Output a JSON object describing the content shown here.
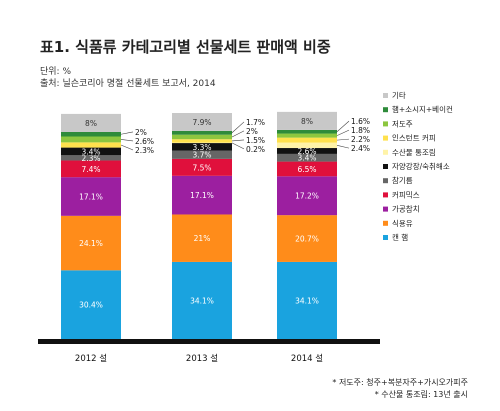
{
  "title": "표1. 식품류 카테고리별 선물세트 판매액 비중",
  "unit_line": "단위: %",
  "source_line": "출처: 닐슨코리아 명절 선물세트 보고서, 2014",
  "footnotes": [
    "* 저도주: 청주+복분자주+가시오가피주",
    "* 수산물 통조림: 13년 출시"
  ],
  "colors": {
    "기타": "#c8c8c8",
    "햄+소시지+베이컨": "#2e8b3a",
    "저도주": "#8cc63f",
    "인스턴트 커피": "#ffe14d",
    "수산물 통조림": "#fff3a8",
    "자양강장/숙취해소": "#111111",
    "참기름": "#666666",
    "커피믹스": "#e0103c",
    "가공참치": "#9c1fa0",
    "식용유": "#ff8c1a",
    "캔 햄": "#1aa3df"
  },
  "chart_data": {
    "type": "bar",
    "stacked": true,
    "categories": [
      "2012 설",
      "2013 설",
      "2014 설"
    ],
    "ylim": [
      0,
      100
    ],
    "series": [
      {
        "name": "캔 햄",
        "values": [
          30.4,
          34.1,
          34.1
        ],
        "labels": [
          "30.4%",
          "34.1%",
          "34.1%"
        ]
      },
      {
        "name": "식용유",
        "values": [
          24.1,
          21,
          20.7
        ],
        "labels": [
          "24.1%",
          "21%",
          "20.7%"
        ]
      },
      {
        "name": "가공참치",
        "values": [
          17.1,
          17.1,
          17.2
        ],
        "labels": [
          "17.1%",
          "17.1%",
          "17.2%"
        ]
      },
      {
        "name": "커피믹스",
        "values": [
          7.4,
          7.5,
          6.5
        ],
        "labels": [
          "7.4%",
          "7.5%",
          "6.5%"
        ]
      },
      {
        "name": "참기름",
        "values": [
          2.3,
          3.7,
          3.4
        ],
        "labels": [
          "2.3%",
          "3.7%",
          "3.4%"
        ]
      },
      {
        "name": "자양강장/숙취해소",
        "values": [
          3.4,
          3.3,
          2.6
        ],
        "labels": [
          "3.4%",
          "3.3%",
          "2.6%"
        ]
      },
      {
        "name": "수산물 통조림",
        "values": [
          0,
          0.2,
          2.4
        ],
        "labels": [
          "",
          "0.2%",
          "2.4%"
        ]
      },
      {
        "name": "인스턴트 커피",
        "values": [
          2.3,
          1.5,
          2.2
        ],
        "labels": [
          "2.3%",
          "1.5%",
          "2.2%"
        ]
      },
      {
        "name": "저도주",
        "values": [
          2.6,
          2,
          1.8
        ],
        "labels": [
          "2.6%",
          "2%",
          "1.8%"
        ]
      },
      {
        "name": "햄+소시지+베이컨",
        "values": [
          2,
          1.7,
          1.6
        ],
        "labels": [
          "2%",
          "1.7%",
          "1.6%"
        ]
      },
      {
        "name": "기타",
        "values": [
          8,
          7.9,
          8
        ],
        "labels": [
          "8%",
          "7.9%",
          "8%"
        ]
      }
    ],
    "legend": [
      "기타",
      "햄+소시지+베이컨",
      "저도주",
      "인스턴트 커피",
      "수산물 통조림",
      "자양강장/숙취해소",
      "참기름",
      "커피믹스",
      "가공참치",
      "식용유",
      "캔 햄"
    ],
    "legend_position": "right"
  }
}
